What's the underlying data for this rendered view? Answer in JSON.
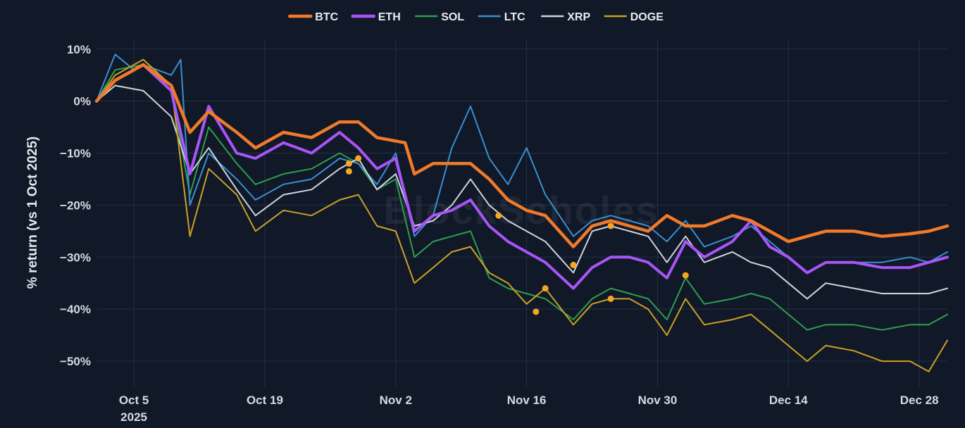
{
  "watermark": "BlockScholes",
  "chart_data": {
    "type": "line",
    "title": "",
    "xlabel": "",
    "ylabel": "% return (vs 1 Oct 2025)",
    "x_start": "2025-10-01",
    "x_end": "2025-12-31",
    "x_ticks": [
      {
        "date": "2025-10-05",
        "label": "Oct 5",
        "sublabel": "2025"
      },
      {
        "date": "2025-10-19",
        "label": "Oct 19"
      },
      {
        "date": "2025-11-02",
        "label": "Nov 2"
      },
      {
        "date": "2025-11-16",
        "label": "Nov 16"
      },
      {
        "date": "2025-11-30",
        "label": "Nov 30"
      },
      {
        "date": "2025-12-14",
        "label": "Dec 14"
      },
      {
        "date": "2025-12-28",
        "label": "Dec 28"
      }
    ],
    "ylim": [
      -55,
      12
    ],
    "y_ticks": [
      10,
      0,
      -10,
      -20,
      -30,
      -40,
      -50
    ],
    "y_tick_labels": [
      "10%",
      "0%",
      "−10%",
      "−20%",
      "−30%",
      "−40%",
      "−50%"
    ],
    "grid": true,
    "legend_position": "top-center",
    "series": [
      {
        "name": "BTC",
        "color": "#f07a2a",
        "width": 4.5,
        "points": [
          [
            "2025-10-01",
            0
          ],
          [
            "2025-10-03",
            4
          ],
          [
            "2025-10-06",
            7
          ],
          [
            "2025-10-09",
            3
          ],
          [
            "2025-10-11",
            -6
          ],
          [
            "2025-10-13",
            -2
          ],
          [
            "2025-10-16",
            -6
          ],
          [
            "2025-10-18",
            -9
          ],
          [
            "2025-10-21",
            -6
          ],
          [
            "2025-10-24",
            -7
          ],
          [
            "2025-10-27",
            -4
          ],
          [
            "2025-10-29",
            -4
          ],
          [
            "2025-10-31",
            -7
          ],
          [
            "2025-11-03",
            -8
          ],
          [
            "2025-11-04",
            -14
          ],
          [
            "2025-11-06",
            -12
          ],
          [
            "2025-11-08",
            -12
          ],
          [
            "2025-11-10",
            -12
          ],
          [
            "2025-11-12",
            -15
          ],
          [
            "2025-11-14",
            -19
          ],
          [
            "2025-11-16",
            -21
          ],
          [
            "2025-11-18",
            -22
          ],
          [
            "2025-11-21",
            -28
          ],
          [
            "2025-11-23",
            -24
          ],
          [
            "2025-11-25",
            -23
          ],
          [
            "2025-11-27",
            -24
          ],
          [
            "2025-11-29",
            -25
          ],
          [
            "2025-12-01",
            -22
          ],
          [
            "2025-12-03",
            -24
          ],
          [
            "2025-12-05",
            -24
          ],
          [
            "2025-12-08",
            -22
          ],
          [
            "2025-12-10",
            -23
          ],
          [
            "2025-12-12",
            -25
          ],
          [
            "2025-12-14",
            -27
          ],
          [
            "2025-12-16",
            -26
          ],
          [
            "2025-12-18",
            -25
          ],
          [
            "2025-12-21",
            -25
          ],
          [
            "2025-12-24",
            -26
          ],
          [
            "2025-12-27",
            -25.5
          ],
          [
            "2025-12-29",
            -25
          ],
          [
            "2025-12-31",
            -24
          ]
        ]
      },
      {
        "name": "ETH",
        "color": "#a855f7",
        "width": 4,
        "points": [
          [
            "2025-10-01",
            0
          ],
          [
            "2025-10-03",
            4
          ],
          [
            "2025-10-06",
            7
          ],
          [
            "2025-10-09",
            2
          ],
          [
            "2025-10-11",
            -14
          ],
          [
            "2025-10-13",
            -1
          ],
          [
            "2025-10-16",
            -10
          ],
          [
            "2025-10-18",
            -11
          ],
          [
            "2025-10-21",
            -8
          ],
          [
            "2025-10-24",
            -10
          ],
          [
            "2025-10-27",
            -6
          ],
          [
            "2025-10-29",
            -9
          ],
          [
            "2025-10-31",
            -13
          ],
          [
            "2025-11-02",
            -11
          ],
          [
            "2025-11-04",
            -25
          ],
          [
            "2025-11-06",
            -22
          ],
          [
            "2025-11-08",
            -21
          ],
          [
            "2025-11-10",
            -19
          ],
          [
            "2025-11-12",
            -24
          ],
          [
            "2025-11-14",
            -27
          ],
          [
            "2025-11-16",
            -29
          ],
          [
            "2025-11-18",
            -31
          ],
          [
            "2025-11-21",
            -36
          ],
          [
            "2025-11-23",
            -32
          ],
          [
            "2025-11-25",
            -30
          ],
          [
            "2025-11-27",
            -30
          ],
          [
            "2025-11-29",
            -31
          ],
          [
            "2025-12-01",
            -34
          ],
          [
            "2025-12-03",
            -27
          ],
          [
            "2025-12-05",
            -30
          ],
          [
            "2025-12-08",
            -27
          ],
          [
            "2025-12-10",
            -23
          ],
          [
            "2025-12-12",
            -28
          ],
          [
            "2025-12-14",
            -30
          ],
          [
            "2025-12-16",
            -33
          ],
          [
            "2025-12-18",
            -31
          ],
          [
            "2025-12-21",
            -31
          ],
          [
            "2025-12-24",
            -32
          ],
          [
            "2025-12-27",
            -32
          ],
          [
            "2025-12-29",
            -31
          ],
          [
            "2025-12-31",
            -30
          ]
        ]
      },
      {
        "name": "SOL",
        "color": "#2e9e4f",
        "width": 2,
        "points": [
          [
            "2025-10-01",
            0
          ],
          [
            "2025-10-03",
            6
          ],
          [
            "2025-10-06",
            7
          ],
          [
            "2025-10-09",
            2
          ],
          [
            "2025-10-11",
            -18
          ],
          [
            "2025-10-13",
            -5
          ],
          [
            "2025-10-16",
            -12
          ],
          [
            "2025-10-18",
            -16
          ],
          [
            "2025-10-21",
            -14
          ],
          [
            "2025-10-24",
            -13
          ],
          [
            "2025-10-27",
            -10
          ],
          [
            "2025-10-29",
            -12
          ],
          [
            "2025-10-31",
            -17
          ],
          [
            "2025-11-02",
            -15
          ],
          [
            "2025-11-04",
            -30
          ],
          [
            "2025-11-06",
            -27
          ],
          [
            "2025-11-08",
            -26
          ],
          [
            "2025-11-10",
            -25
          ],
          [
            "2025-11-12",
            -34
          ],
          [
            "2025-11-14",
            -36
          ],
          [
            "2025-11-16",
            -37
          ],
          [
            "2025-11-18",
            -38
          ],
          [
            "2025-11-21",
            -42
          ],
          [
            "2025-11-23",
            -38
          ],
          [
            "2025-11-25",
            -36
          ],
          [
            "2025-11-27",
            -37
          ],
          [
            "2025-11-29",
            -38
          ],
          [
            "2025-12-01",
            -42
          ],
          [
            "2025-12-03",
            -34
          ],
          [
            "2025-12-05",
            -39
          ],
          [
            "2025-12-08",
            -38
          ],
          [
            "2025-12-10",
            -37
          ],
          [
            "2025-12-12",
            -38
          ],
          [
            "2025-12-14",
            -41
          ],
          [
            "2025-12-16",
            -44
          ],
          [
            "2025-12-18",
            -43
          ],
          [
            "2025-12-21",
            -43
          ],
          [
            "2025-12-24",
            -44
          ],
          [
            "2025-12-27",
            -43
          ],
          [
            "2025-12-29",
            -43
          ],
          [
            "2025-12-31",
            -41
          ]
        ]
      },
      {
        "name": "LTC",
        "color": "#3a8fd0",
        "width": 2,
        "points": [
          [
            "2025-10-01",
            0
          ],
          [
            "2025-10-03",
            9
          ],
          [
            "2025-10-05",
            6
          ],
          [
            "2025-10-06",
            7
          ],
          [
            "2025-10-09",
            5
          ],
          [
            "2025-10-10",
            8
          ],
          [
            "2025-10-11",
            -20
          ],
          [
            "2025-10-13",
            -10
          ],
          [
            "2025-10-16",
            -15
          ],
          [
            "2025-10-18",
            -19
          ],
          [
            "2025-10-21",
            -16
          ],
          [
            "2025-10-24",
            -15
          ],
          [
            "2025-10-27",
            -11
          ],
          [
            "2025-10-29",
            -12
          ],
          [
            "2025-10-31",
            -16
          ],
          [
            "2025-11-02",
            -10
          ],
          [
            "2025-11-04",
            -26
          ],
          [
            "2025-11-06",
            -22
          ],
          [
            "2025-11-08",
            -9
          ],
          [
            "2025-11-10",
            -1
          ],
          [
            "2025-11-12",
            -11
          ],
          [
            "2025-11-14",
            -16
          ],
          [
            "2025-11-16",
            -9
          ],
          [
            "2025-11-18",
            -18
          ],
          [
            "2025-11-21",
            -26
          ],
          [
            "2025-11-23",
            -23
          ],
          [
            "2025-11-25",
            -22
          ],
          [
            "2025-11-27",
            -23
          ],
          [
            "2025-11-29",
            -24
          ],
          [
            "2025-12-01",
            -27
          ],
          [
            "2025-12-03",
            -23
          ],
          [
            "2025-12-05",
            -28
          ],
          [
            "2025-12-08",
            -26
          ],
          [
            "2025-12-10",
            -24
          ],
          [
            "2025-12-12",
            -27
          ],
          [
            "2025-12-14",
            -30
          ],
          [
            "2025-12-16",
            -33
          ],
          [
            "2025-12-18",
            -31
          ],
          [
            "2025-12-21",
            -31
          ],
          [
            "2025-12-24",
            -31
          ],
          [
            "2025-12-27",
            -30
          ],
          [
            "2025-12-29",
            -31
          ],
          [
            "2025-12-31",
            -29
          ]
        ]
      },
      {
        "name": "XRP",
        "color": "#d0d4dc",
        "width": 2,
        "points": [
          [
            "2025-10-01",
            0
          ],
          [
            "2025-10-03",
            3
          ],
          [
            "2025-10-06",
            2
          ],
          [
            "2025-10-09",
            -3
          ],
          [
            "2025-10-11",
            -14
          ],
          [
            "2025-10-13",
            -9
          ],
          [
            "2025-10-16",
            -17
          ],
          [
            "2025-10-18",
            -22
          ],
          [
            "2025-10-21",
            -18
          ],
          [
            "2025-10-24",
            -17
          ],
          [
            "2025-10-27",
            -13
          ],
          [
            "2025-10-29",
            -11
          ],
          [
            "2025-10-31",
            -17
          ],
          [
            "2025-11-02",
            -14
          ],
          [
            "2025-11-04",
            -24
          ],
          [
            "2025-11-06",
            -23
          ],
          [
            "2025-11-08",
            -20
          ],
          [
            "2025-11-10",
            -15
          ],
          [
            "2025-11-12",
            -20
          ],
          [
            "2025-11-14",
            -23
          ],
          [
            "2025-11-16",
            -25
          ],
          [
            "2025-11-18",
            -27
          ],
          [
            "2025-11-21",
            -33
          ],
          [
            "2025-11-23",
            -25
          ],
          [
            "2025-11-25",
            -24
          ],
          [
            "2025-11-27",
            -25
          ],
          [
            "2025-11-29",
            -26
          ],
          [
            "2025-12-01",
            -31
          ],
          [
            "2025-12-03",
            -26
          ],
          [
            "2025-12-05",
            -31
          ],
          [
            "2025-12-08",
            -29
          ],
          [
            "2025-12-10",
            -31
          ],
          [
            "2025-12-12",
            -32
          ],
          [
            "2025-12-14",
            -35
          ],
          [
            "2025-12-16",
            -38
          ],
          [
            "2025-12-18",
            -35
          ],
          [
            "2025-12-21",
            -36
          ],
          [
            "2025-12-24",
            -37
          ],
          [
            "2025-12-27",
            -37
          ],
          [
            "2025-12-29",
            -37
          ],
          [
            "2025-12-31",
            -36
          ]
        ]
      },
      {
        "name": "DOGE",
        "color": "#c9a227",
        "width": 2,
        "points": [
          [
            "2025-10-01",
            0
          ],
          [
            "2025-10-03",
            5
          ],
          [
            "2025-10-06",
            8
          ],
          [
            "2025-10-09",
            3
          ],
          [
            "2025-10-11",
            -26
          ],
          [
            "2025-10-13",
            -13
          ],
          [
            "2025-10-16",
            -18
          ],
          [
            "2025-10-18",
            -25
          ],
          [
            "2025-10-21",
            -21
          ],
          [
            "2025-10-24",
            -22
          ],
          [
            "2025-10-27",
            -19
          ],
          [
            "2025-10-29",
            -18
          ],
          [
            "2025-10-31",
            -24
          ],
          [
            "2025-11-02",
            -25
          ],
          [
            "2025-11-04",
            -35
          ],
          [
            "2025-11-06",
            -32
          ],
          [
            "2025-11-08",
            -29
          ],
          [
            "2025-11-10",
            -28
          ],
          [
            "2025-11-12",
            -33
          ],
          [
            "2025-11-14",
            -35
          ],
          [
            "2025-11-16",
            -39
          ],
          [
            "2025-11-18",
            -36
          ],
          [
            "2025-11-21",
            -43
          ],
          [
            "2025-11-23",
            -39
          ],
          [
            "2025-11-25",
            -38
          ],
          [
            "2025-11-27",
            -38
          ],
          [
            "2025-11-29",
            -40
          ],
          [
            "2025-12-01",
            -45
          ],
          [
            "2025-12-03",
            -38
          ],
          [
            "2025-12-05",
            -43
          ],
          [
            "2025-12-08",
            -42
          ],
          [
            "2025-12-10",
            -41
          ],
          [
            "2025-12-12",
            -44
          ],
          [
            "2025-12-14",
            -47
          ],
          [
            "2025-12-16",
            -50
          ],
          [
            "2025-12-18",
            -47
          ],
          [
            "2025-12-21",
            -48
          ],
          [
            "2025-12-24",
            -50
          ],
          [
            "2025-12-27",
            -50
          ],
          [
            "2025-12-29",
            -52
          ],
          [
            "2025-12-31",
            -46
          ]
        ]
      }
    ],
    "markers": {
      "color": "#f5a623",
      "points": [
        [
          "2025-10-28",
          -12
        ],
        [
          "2025-10-28",
          -13.5
        ],
        [
          "2025-10-29",
          -11
        ],
        [
          "2025-11-13",
          -22
        ],
        [
          "2025-11-17",
          -40.5
        ],
        [
          "2025-11-18",
          -36
        ],
        [
          "2025-11-21",
          -31.5
        ],
        [
          "2025-11-25",
          -24
        ],
        [
          "2025-11-25",
          -38
        ],
        [
          "2025-12-03",
          -33.5
        ]
      ]
    }
  }
}
